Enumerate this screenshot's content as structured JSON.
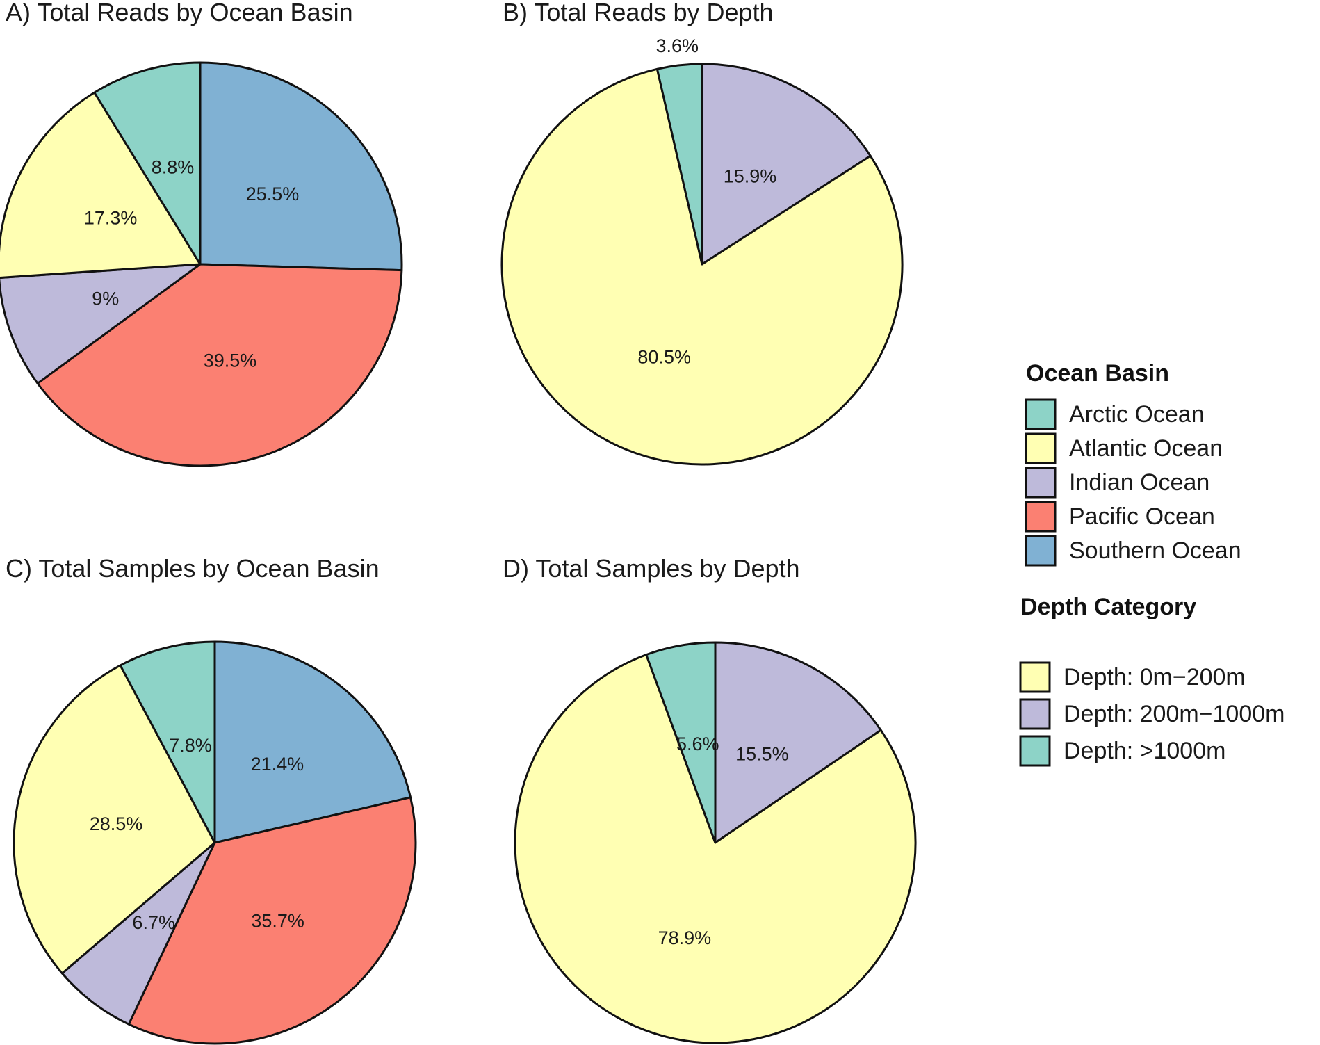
{
  "chart_data": [
    {
      "type": "pie",
      "title": "A) Total Reads by Ocean Basin",
      "start": "12 o'clock",
      "direction": "clockwise",
      "slices": [
        {
          "name": "Southern Ocean",
          "value": 25.5,
          "label": "25.5%"
        },
        {
          "name": "Pacific Ocean",
          "value": 39.5,
          "label": "39.5%"
        },
        {
          "name": "Indian Ocean",
          "value": 9.0,
          "label": "9%"
        },
        {
          "name": "Atlantic Ocean",
          "value": 17.3,
          "label": "17.3%"
        },
        {
          "name": "Arctic Ocean",
          "value": 8.8,
          "label": "8.8%"
        }
      ]
    },
    {
      "type": "pie",
      "title": "B) Total Reads by Depth",
      "start": "12 o'clock",
      "direction": "clockwise",
      "slices": [
        {
          "name": "Depth: 200m−1000m",
          "value": 15.9,
          "label": "15.9%"
        },
        {
          "name": "Depth: 0m−200m",
          "value": 80.5,
          "label": "80.5%"
        },
        {
          "name": "Depth: >1000m",
          "value": 3.6,
          "label": "3.6%",
          "label_outside": true
        }
      ]
    },
    {
      "type": "pie",
      "title": "C) Total Samples by Ocean Basin",
      "start": "12 o'clock",
      "direction": "clockwise",
      "slices": [
        {
          "name": "Southern Ocean",
          "value": 21.4,
          "label": "21.4%"
        },
        {
          "name": "Pacific Ocean",
          "value": 35.7,
          "label": "35.7%"
        },
        {
          "name": "Indian Ocean",
          "value": 6.7,
          "label": "6.7%"
        },
        {
          "name": "Atlantic Ocean",
          "value": 28.5,
          "label": "28.5%"
        },
        {
          "name": "Arctic Ocean",
          "value": 7.8,
          "label": "7.8%"
        }
      ]
    },
    {
      "type": "pie",
      "title": "D) Total Samples by Depth",
      "start": "12 o'clock",
      "direction": "clockwise",
      "slices": [
        {
          "name": "Depth: 200m−1000m",
          "value": 15.5,
          "label": "15.5%"
        },
        {
          "name": "Depth: 0m−200m",
          "value": 78.9,
          "label": "78.9%"
        },
        {
          "name": "Depth: >1000m",
          "value": 5.6,
          "label": "5.6%"
        }
      ]
    }
  ],
  "colors": {
    "Arctic Ocean": "#8dd3c7",
    "Atlantic Ocean": "#ffffb3",
    "Indian Ocean": "#bebada",
    "Pacific Ocean": "#fb8072",
    "Southern Ocean": "#80b1d3",
    "Depth: 0m−200m": "#ffffb3",
    "Depth: 200m−1000m": "#bebada",
    "Depth: >1000m": "#8dd3c7"
  },
  "legend": {
    "placement": "right",
    "groups": [
      {
        "title": "Ocean Basin",
        "items": [
          "Arctic Ocean",
          "Atlantic Ocean",
          "Indian Ocean",
          "Pacific Ocean",
          "Southern Ocean"
        ]
      },
      {
        "title": "Depth Category",
        "items": [
          "Depth: 0m−200m",
          "Depth: 200m−1000m",
          "Depth: >1000m"
        ]
      }
    ]
  }
}
